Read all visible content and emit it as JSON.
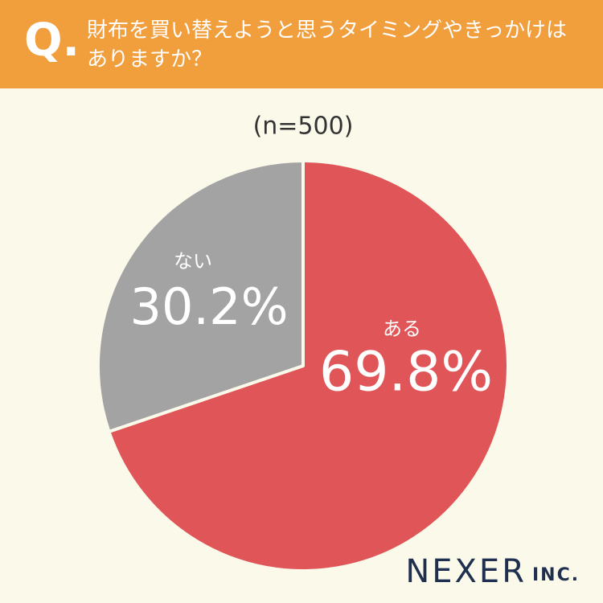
{
  "chart_data": {
    "type": "pie",
    "question_mark": "Q.",
    "title": "財布を買い替えようと思うタイミングやきっかけはありますか？",
    "subtitle": "(n=500)",
    "categories": [
      "ある",
      "ない"
    ],
    "values": [
      69.8,
      30.2
    ],
    "value_labels": [
      "69.8%",
      "30.2%"
    ],
    "colors": [
      "#e05658",
      "#a3a3a3"
    ],
    "brand": "NEXER",
    "brand_suffix": "INC."
  }
}
